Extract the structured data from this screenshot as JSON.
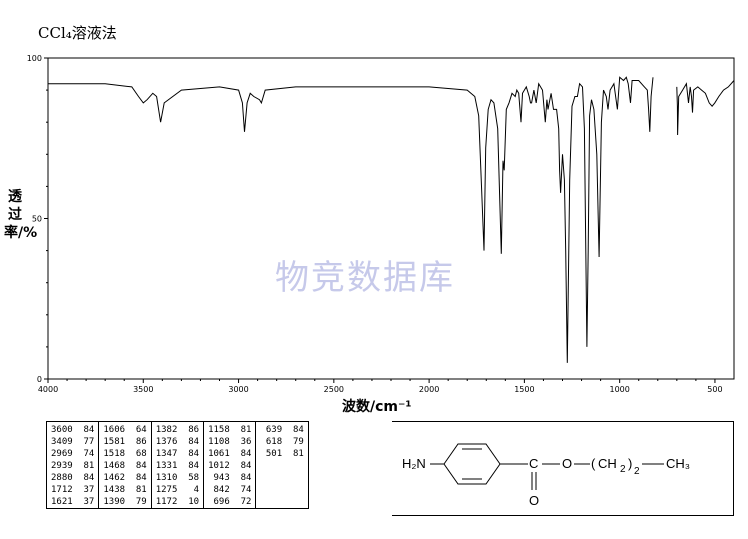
{
  "title": "CCl₄溶液法",
  "watermark": "物竞数据库",
  "chart_data": {
    "type": "line",
    "title": "CCl₄溶液法",
    "xlabel": "波数/cm⁻¹",
    "ylabel": "透过率/%",
    "xlim": [
      4000,
      400
    ],
    "ylim": [
      0,
      100
    ],
    "x_reversed": true,
    "x_ticks": [
      4000,
      3500,
      3000,
      2500,
      2000,
      1500,
      1000,
      500
    ],
    "x_tick_labels": [
      "4000",
      "3500",
      "3000",
      "2500",
      "2000",
      "1500",
      "1000",
      "500"
    ],
    "y_ticks": [
      0,
      50,
      100
    ],
    "y_tick_labels": [
      "0",
      "50",
      "100"
    ],
    "grid": false,
    "series": [
      {
        "segments": [
          [
            [
              4000,
              92
            ],
            [
              3700,
              92
            ],
            [
              3560,
              91
            ],
            [
              3525,
              88
            ],
            [
              3500,
              86
            ],
            [
              3480,
              87
            ],
            [
              3450,
              89
            ],
            [
              3430,
              88
            ],
            [
              3409,
              80
            ],
            [
              3390,
              86
            ],
            [
              3300,
              90
            ],
            [
              3100,
              91
            ],
            [
              3000,
              90
            ],
            [
              2980,
              86
            ],
            [
              2969,
              77
            ],
            [
              2955,
              86
            ],
            [
              2939,
              89
            ],
            [
              2920,
              88
            ],
            [
              2890,
              87
            ],
            [
              2880,
              86
            ],
            [
              2860,
              90
            ],
            [
              2700,
              91
            ],
            [
              2300,
              91
            ],
            [
              2000,
              91
            ],
            [
              1800,
              90
            ],
            [
              1760,
              88
            ],
            [
              1740,
              82
            ],
            [
              1725,
              60
            ],
            [
              1712,
              40
            ],
            [
              1703,
              72
            ],
            [
              1690,
              84
            ],
            [
              1675,
              87
            ],
            [
              1660,
              86
            ],
            [
              1640,
              78
            ],
            [
              1621,
              39
            ],
            [
              1612,
              68
            ],
            [
              1606,
              65
            ],
            [
              1595,
              84
            ],
            [
              1581,
              86
            ],
            [
              1565,
              89
            ],
            [
              1548,
              88
            ],
            [
              1540,
              90
            ],
            [
              1530,
              89
            ],
            [
              1518,
              80
            ],
            [
              1510,
              89
            ],
            [
              1490,
              91
            ],
            [
              1475,
              88
            ],
            [
              1468,
              86
            ],
            [
              1462,
              86
            ],
            [
              1450,
              90
            ],
            [
              1438,
              86
            ],
            [
              1425,
              92
            ],
            [
              1405,
              90
            ],
            [
              1390,
              80
            ],
            [
              1382,
              87
            ],
            [
              1376,
              84
            ],
            [
              1360,
              89
            ],
            [
              1347,
              84
            ],
            [
              1331,
              84
            ],
            [
              1320,
              78
            ],
            [
              1315,
              65
            ],
            [
              1310,
              58
            ],
            [
              1300,
              70
            ],
            [
              1290,
              62
            ],
            [
              1283,
              40
            ],
            [
              1275,
              5
            ],
            [
              1262,
              62
            ],
            [
              1250,
              85
            ],
            [
              1235,
              88
            ],
            [
              1222,
              88
            ],
            [
              1210,
              92
            ],
            [
              1195,
              91
            ],
            [
              1185,
              78
            ],
            [
              1172,
              10
            ],
            [
              1165,
              40
            ],
            [
              1158,
              82
            ],
            [
              1148,
              87
            ],
            [
              1135,
              84
            ],
            [
              1120,
              70
            ],
            [
              1108,
              38
            ],
            [
              1096,
              80
            ],
            [
              1085,
              90
            ],
            [
              1070,
              88
            ],
            [
              1061,
              84
            ],
            [
              1050,
              90
            ],
            [
              1030,
              92
            ],
            [
              1012,
              84
            ],
            [
              1000,
              94
            ],
            [
              980,
              93
            ],
            [
              965,
              94
            ],
            [
              955,
              92
            ],
            [
              943,
              86
            ],
            [
              935,
              93
            ],
            [
              900,
              93
            ],
            [
              870,
              91
            ],
            [
              855,
              90
            ],
            [
              848,
              84
            ],
            [
              842,
              77
            ],
            [
              835,
              88
            ],
            [
              825,
              94
            ]
          ],
          [
            [
              700,
              91
            ],
            [
              697,
              85
            ],
            [
              696,
              76
            ],
            [
              690,
              88
            ],
            [
              670,
              90
            ],
            [
              650,
              92
            ],
            [
              639,
              86
            ],
            [
              630,
              91
            ],
            [
              623,
              88
            ],
            [
              618,
              83
            ],
            [
              612,
              90
            ],
            [
              590,
              91
            ],
            [
              570,
              90
            ],
            [
              550,
              89
            ],
            [
              530,
              86
            ],
            [
              515,
              85
            ],
            [
              501,
              86
            ],
            [
              480,
              88
            ],
            [
              455,
              90
            ],
            [
              430,
              91
            ],
            [
              400,
              93
            ]
          ]
        ]
      }
    ],
    "peak_table": [
      {
        "wavenumber": 3600,
        "transmittance": 84
      },
      {
        "wavenumber": 3409,
        "transmittance": 77
      },
      {
        "wavenumber": 2969,
        "transmittance": 74
      },
      {
        "wavenumber": 2939,
        "transmittance": 81
      },
      {
        "wavenumber": 2880,
        "transmittance": 84
      },
      {
        "wavenumber": 1712,
        "transmittance": 37
      },
      {
        "wavenumber": 1621,
        "transmittance": 37
      },
      {
        "wavenumber": 1606,
        "transmittance": 64
      },
      {
        "wavenumber": 1581,
        "transmittance": 86
      },
      {
        "wavenumber": 1518,
        "transmittance": 68
      },
      {
        "wavenumber": 1468,
        "transmittance": 84
      },
      {
        "wavenumber": 1462,
        "transmittance": 84
      },
      {
        "wavenumber": 1438,
        "transmittance": 81
      },
      {
        "wavenumber": 1390,
        "transmittance": 79
      },
      {
        "wavenumber": 1382,
        "transmittance": 86
      },
      {
        "wavenumber": 1376,
        "transmittance": 84
      },
      {
        "wavenumber": 1347,
        "transmittance": 84
      },
      {
        "wavenumber": 1331,
        "transmittance": 84
      },
      {
        "wavenumber": 1310,
        "transmittance": 58
      },
      {
        "wavenumber": 1275,
        "transmittance": 4
      },
      {
        "wavenumber": 1172,
        "transmittance": 10
      },
      {
        "wavenumber": 1158,
        "transmittance": 81
      },
      {
        "wavenumber": 1108,
        "transmittance": 36
      },
      {
        "wavenumber": 1061,
        "transmittance": 84
      },
      {
        "wavenumber": 1012,
        "transmittance": 84
      },
      {
        "wavenumber": 943,
        "transmittance": 84
      },
      {
        "wavenumber": 842,
        "transmittance": 74
      },
      {
        "wavenumber": 696,
        "transmittance": 72
      },
      {
        "wavenumber": 639,
        "transmittance": 84
      },
      {
        "wavenumber": 618,
        "transmittance": 79
      },
      {
        "wavenumber": 501,
        "transmittance": 81
      }
    ]
  },
  "table_columns": [
    [
      "3600  84",
      "3409  77",
      "2969  74",
      "2939  81",
      "2880  84",
      "1712  37",
      "1621  37"
    ],
    [
      "1606  64",
      "1581  86",
      "1518  68",
      "1468  84",
      "1462  84",
      "1438  81",
      "1390  79"
    ],
    [
      "1382  86",
      "1376  84",
      "1347  84",
      "1331  84",
      "1310  58",
      "1275   4",
      "1172  10"
    ],
    [
      "1158  81",
      "1108  36",
      "1061  84",
      "1012  84",
      " 943  84",
      " 842  74",
      " 696  72"
    ],
    [
      " 639  84",
      " 618  79",
      " 501  81"
    ]
  ],
  "structure": {
    "amine": "H₂N",
    "carbonyl_c": "C",
    "ester_o": "O",
    "carbonyl_o": "O",
    "chain_open": "(",
    "chain_unit": "CH",
    "chain_sub": "2",
    "chain_close": ")",
    "chain_n": "2",
    "terminal": "CH₃"
  }
}
